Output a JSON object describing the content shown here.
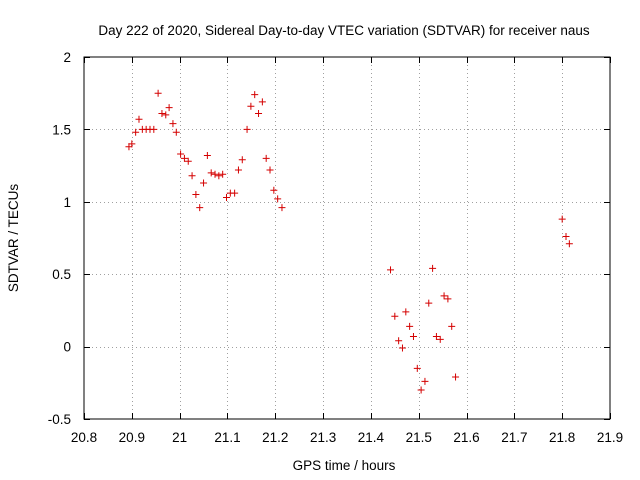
{
  "chart_data": {
    "type": "scatter",
    "title": "Day 222 of 2020, Sidereal Day-to-day VTEC variation (SDTVAR) for receiver naus",
    "xlabel": "GPS time / hours",
    "ylabel": "SDTVAR / TECUs",
    "xlim": [
      20.8,
      21.9
    ],
    "ylim": [
      -0.5,
      2.0
    ],
    "x_ticks": [
      20.8,
      20.9,
      21.0,
      21.1,
      21.2,
      21.3,
      21.4,
      21.5,
      21.6,
      21.7,
      21.8,
      21.9
    ],
    "x_tick_labels": [
      "20.8",
      "20.9",
      "21",
      "21.1",
      "21.2",
      "21.3",
      "21.4",
      "21.5",
      "21.6",
      "21.7",
      "21.8",
      "21.9"
    ],
    "y_ticks": [
      -0.5,
      0.0,
      0.5,
      1.0,
      1.5,
      2.0
    ],
    "y_tick_labels": [
      "-0.5",
      "0",
      "0.5",
      "1",
      "1.5",
      "2"
    ],
    "grid": true,
    "marker": "+",
    "marker_color": "#d40000",
    "series": [
      {
        "name": "SDTVAR",
        "points": [
          [
            20.894,
            1.38
          ],
          [
            20.9,
            1.4
          ],
          [
            20.908,
            1.48
          ],
          [
            20.915,
            1.57
          ],
          [
            20.922,
            1.5
          ],
          [
            20.93,
            1.5
          ],
          [
            20.938,
            1.5
          ],
          [
            20.946,
            1.5
          ],
          [
            20.955,
            1.75
          ],
          [
            20.963,
            1.61
          ],
          [
            20.971,
            1.6
          ],
          [
            20.978,
            1.65
          ],
          [
            20.986,
            1.54
          ],
          [
            20.993,
            1.48
          ],
          [
            21.002,
            1.33
          ],
          [
            21.01,
            1.3
          ],
          [
            21.018,
            1.28
          ],
          [
            21.026,
            1.18
          ],
          [
            21.034,
            1.05
          ],
          [
            21.042,
            0.96
          ],
          [
            21.05,
            1.13
          ],
          [
            21.058,
            1.32
          ],
          [
            21.066,
            1.2
          ],
          [
            21.074,
            1.19
          ],
          [
            21.082,
            1.18
          ],
          [
            21.09,
            1.19
          ],
          [
            21.098,
            1.03
          ],
          [
            21.106,
            1.06
          ],
          [
            21.115,
            1.06
          ],
          [
            21.123,
            1.22
          ],
          [
            21.131,
            1.29
          ],
          [
            21.141,
            1.5
          ],
          [
            21.149,
            1.66
          ],
          [
            21.157,
            1.74
          ],
          [
            21.165,
            1.61
          ],
          [
            21.173,
            1.69
          ],
          [
            21.181,
            1.3
          ],
          [
            21.189,
            1.22
          ],
          [
            21.197,
            1.08
          ],
          [
            21.205,
            1.02
          ],
          [
            21.214,
            0.96
          ],
          [
            21.441,
            0.53
          ],
          [
            21.45,
            0.21
          ],
          [
            21.458,
            0.04
          ],
          [
            21.466,
            -0.01
          ],
          [
            21.473,
            0.24
          ],
          [
            21.481,
            0.14
          ],
          [
            21.489,
            0.07
          ],
          [
            21.497,
            -0.15
          ],
          [
            21.505,
            -0.3
          ],
          [
            21.513,
            -0.24
          ],
          [
            21.521,
            0.3
          ],
          [
            21.529,
            0.54
          ],
          [
            21.537,
            0.07
          ],
          [
            21.545,
            0.05
          ],
          [
            21.553,
            0.35
          ],
          [
            21.561,
            0.33
          ],
          [
            21.569,
            0.14
          ],
          [
            21.577,
            -0.21
          ],
          [
            21.8,
            0.88
          ],
          [
            21.808,
            0.76
          ],
          [
            21.815,
            0.71
          ]
        ]
      }
    ]
  }
}
